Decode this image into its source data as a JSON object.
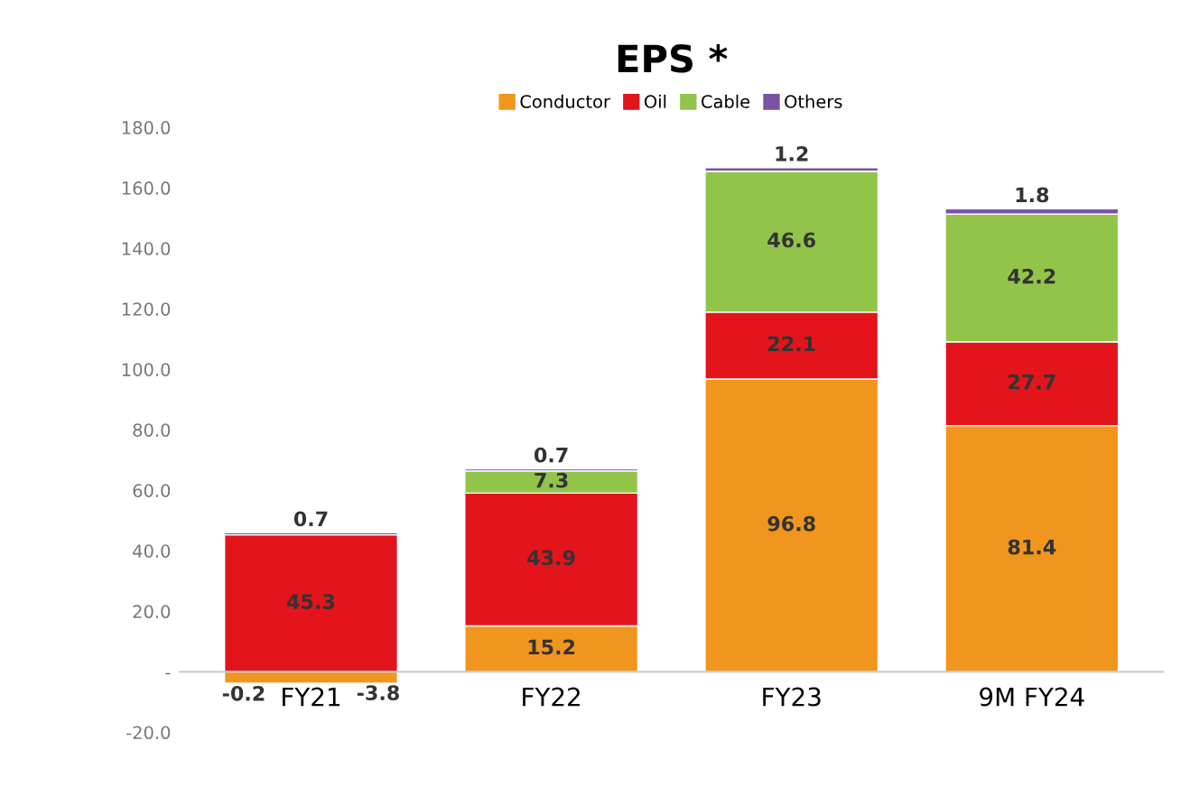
{
  "chart_data": {
    "type": "bar",
    "title": "EPS *",
    "stacked": true,
    "legend": "top",
    "grid": false,
    "data_labels": true,
    "categories": [
      "FY21",
      "FY22",
      "FY23",
      "9M FY24"
    ],
    "series": [
      {
        "name": "Conductor",
        "color": "#f0961e",
        "values": [
          -3.8,
          15.2,
          96.8,
          81.4
        ]
      },
      {
        "name": "Oil",
        "color": "#e3141c",
        "values": [
          45.3,
          43.9,
          22.1,
          27.7
        ]
      },
      {
        "name": "Cable",
        "color": "#92c44a",
        "values": [
          -0.2,
          7.3,
          46.6,
          42.2
        ]
      },
      {
        "name": "Others",
        "color": "#7b52a3",
        "values": [
          0.7,
          0.7,
          1.2,
          1.8
        ]
      }
    ],
    "ylim": [
      -20,
      180
    ],
    "yticks": [
      {
        "value": -20,
        "label": "-20.0"
      },
      {
        "value": 0,
        "label": "-"
      },
      {
        "value": 20,
        "label": "20.0"
      },
      {
        "value": 40,
        "label": "40.0"
      },
      {
        "value": 60,
        "label": "60.0"
      },
      {
        "value": 80,
        "label": "80.0"
      },
      {
        "value": 100,
        "label": "100.0"
      },
      {
        "value": 120,
        "label": "120.0"
      },
      {
        "value": 140,
        "label": "140.0"
      },
      {
        "value": 160,
        "label": "160.0"
      },
      {
        "value": 180,
        "label": "180.0"
      }
    ]
  }
}
